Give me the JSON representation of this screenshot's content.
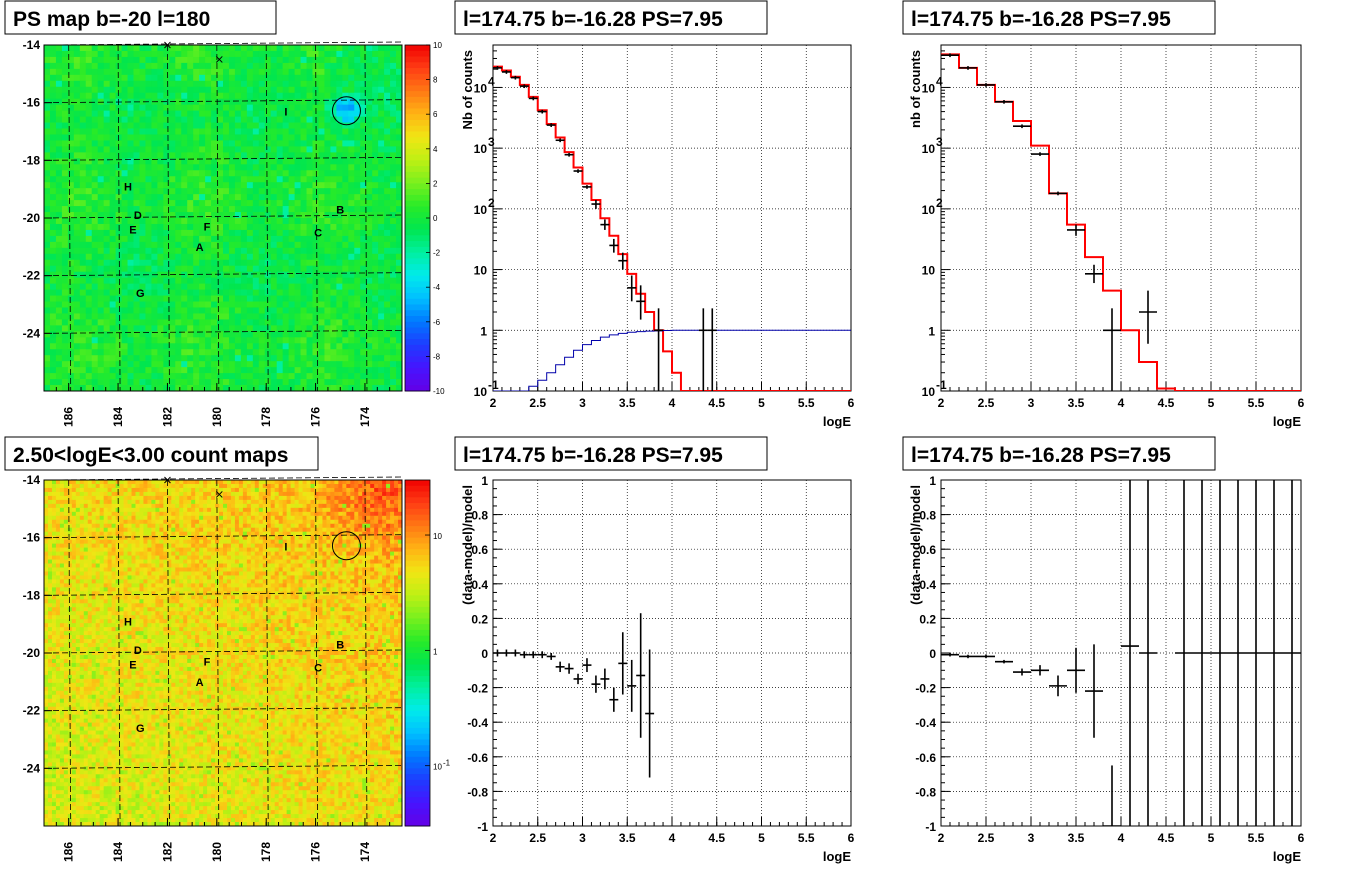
{
  "colors": {
    "model_red": "#ff0000",
    "data_black": "#000000",
    "efficiency_blue": "#0000aa",
    "grid": "#000000"
  },
  "chart_data": [
    {
      "id": "ps_map",
      "type": "heatmap",
      "title": "PS map b=-20 l=180",
      "xticks": [
        "186",
        "184",
        "182",
        "180",
        "178",
        "176",
        "174"
      ],
      "yticks": [
        "-14",
        "-16",
        "-18",
        "-20",
        "-22",
        "-24"
      ],
      "xlim": [
        187,
        172.5
      ],
      "ylim": [
        -26,
        -14
      ],
      "colorbar": {
        "ticks": [
          "10",
          "8",
          "6",
          "4",
          "2",
          "0",
          "-2",
          "-4",
          "-6",
          "-8",
          "-10"
        ],
        "range": [
          -10,
          10
        ]
      },
      "labels": [
        {
          "text": "H",
          "l": 183.6,
          "b": -18.9
        },
        {
          "text": "D",
          "l": 183.2,
          "b": -19.9
        },
        {
          "text": "E",
          "l": 183.4,
          "b": -20.4
        },
        {
          "text": "F",
          "l": 180.4,
          "b": -20.3
        },
        {
          "text": "A",
          "l": 180.7,
          "b": -21.0
        },
        {
          "text": "C",
          "l": 175.9,
          "b": -20.5
        },
        {
          "text": "B",
          "l": 175.0,
          "b": -19.7
        },
        {
          "text": "G",
          "l": 183.1,
          "b": -22.6
        },
        {
          "text": "I",
          "l": 177.2,
          "b": -16.3
        }
      ],
      "circle": {
        "l": 174.75,
        "b": -16.28
      },
      "crosses": [
        {
          "l": 182,
          "b": -14
        },
        {
          "l": 179.9,
          "b": -14.5
        }
      ]
    },
    {
      "id": "spectrum_fine",
      "type": "line",
      "title": "l=174.75 b=-16.28 PS=7.95",
      "xlabel": "logE",
      "ylabel": "Nb of counts",
      "yscale": "log",
      "xlim": [
        2,
        6
      ],
      "ylim": [
        0.1,
        50000
      ],
      "xticks": [
        "2",
        "2.5",
        "3",
        "3.5",
        "4",
        "4.5",
        "5",
        "5.5",
        "6"
      ],
      "yticks": [
        {
          "v": 0.1,
          "t": "10"
        },
        {
          "v": 1,
          "t": "1"
        },
        {
          "v": 10,
          "t": "10"
        },
        {
          "v": 100,
          "t": "10"
        },
        {
          "v": 1000,
          "t": "10"
        },
        {
          "v": 10000,
          "t": "10"
        }
      ],
      "edges": [
        2,
        2.1,
        2.2,
        2.3,
        2.4,
        2.5,
        2.6,
        2.7,
        2.8,
        2.9,
        3,
        3.1,
        3.2,
        3.3,
        3.4,
        3.5,
        3.6,
        3.7,
        3.8,
        3.9,
        4,
        4.1,
        4.2,
        4.3,
        4.4,
        4.5,
        4.6,
        4.7,
        4.8,
        4.9,
        5,
        5.1,
        5.2,
        5.3,
        5.4,
        5.5,
        5.6,
        5.7,
        5.8,
        5.9,
        6
      ],
      "series": [
        {
          "role": "model",
          "values": [
            22000,
            19000,
            15000,
            11000,
            7000,
            4200,
            2500,
            1500,
            860,
            480,
            260,
            140,
            70,
            36,
            18,
            8.5,
            4,
            2,
            1,
            0.45,
            0.2,
            0.1,
            0.1,
            0.1,
            0.1,
            0.1,
            0.1,
            0.1,
            0.1,
            0.1,
            0.1,
            0.1,
            0.1,
            0.1,
            0.1,
            0.1,
            0.1,
            0.1,
            0.1,
            0.1
          ]
        },
        {
          "role": "efficiency",
          "values": [
            0.1,
            0.1,
            0.1,
            0.1,
            0.12,
            0.15,
            0.2,
            0.27,
            0.36,
            0.47,
            0.58,
            0.68,
            0.77,
            0.84,
            0.89,
            0.93,
            0.95,
            0.97,
            0.98,
            0.99,
            1,
            1,
            1,
            1,
            1,
            1,
            1,
            1,
            1,
            1,
            1,
            1,
            1,
            1,
            1,
            1,
            1,
            1,
            1,
            1
          ]
        }
      ],
      "points": [
        {
          "x": 2.05,
          "y": 21000
        },
        {
          "x": 2.15,
          "y": 18000
        },
        {
          "x": 2.25,
          "y": 14500
        },
        {
          "x": 2.35,
          "y": 10500
        },
        {
          "x": 2.45,
          "y": 6600
        },
        {
          "x": 2.55,
          "y": 4000
        },
        {
          "x": 2.65,
          "y": 2400
        },
        {
          "x": 2.75,
          "y": 1350
        },
        {
          "x": 2.85,
          "y": 780
        },
        {
          "x": 2.95,
          "y": 420
        },
        {
          "x": 3.05,
          "y": 230
        },
        {
          "x": 3.15,
          "y": 120,
          "lo": 100,
          "hi": 140
        },
        {
          "x": 3.25,
          "y": 55,
          "lo": 45,
          "hi": 67
        },
        {
          "x": 3.35,
          "y": 25,
          "lo": 19,
          "hi": 32
        },
        {
          "x": 3.45,
          "y": 14,
          "lo": 10,
          "hi": 19
        },
        {
          "x": 3.55,
          "y": 5,
          "lo": 3,
          "hi": 8
        },
        {
          "x": 3.65,
          "y": 3,
          "lo": 1.5,
          "hi": 5.5
        },
        {
          "x": 3.85,
          "y": 1,
          "lo": 0.1,
          "hi": 2.3
        },
        {
          "x": 4.35,
          "y": 1,
          "lo": 0.1,
          "hi": 2.3
        },
        {
          "x": 4.45,
          "y": 1,
          "lo": 0.1,
          "hi": 2.3
        }
      ]
    },
    {
      "id": "spectrum_coarse",
      "type": "line",
      "title": "l=174.75 b=-16.28 PS=7.95",
      "xlabel": "logE",
      "ylabel": "nb of counts",
      "yscale": "log",
      "xlim": [
        2,
        6
      ],
      "ylim": [
        0.1,
        50000
      ],
      "xticks": [
        "2",
        "2.5",
        "3",
        "3.5",
        "4",
        "4.5",
        "5",
        "5.5",
        "6"
      ],
      "yticks": [
        {
          "v": 0.1,
          "t": "10"
        },
        {
          "v": 1,
          "t": "1"
        },
        {
          "v": 10,
          "t": "10"
        },
        {
          "v": 100,
          "t": "10"
        },
        {
          "v": 1000,
          "t": "10"
        },
        {
          "v": 10000,
          "t": "10"
        }
      ],
      "edges": [
        2,
        2.2,
        2.4,
        2.6,
        2.8,
        3,
        3.2,
        3.4,
        3.6,
        3.8,
        4,
        4.2,
        4.4,
        4.6,
        4.8,
        5,
        5.2,
        5.4,
        5.6,
        5.8,
        6
      ],
      "series": [
        {
          "role": "model",
          "values": [
            35000,
            21000,
            11000,
            5800,
            2800,
            1100,
            180,
            55,
            16,
            4.5,
            1,
            0.3,
            0.11,
            0.1,
            0.1,
            0.1,
            0.1,
            0.1,
            0.1,
            0.1
          ]
        }
      ],
      "points": [
        {
          "x": 2.1,
          "y": 34000
        },
        {
          "x": 2.3,
          "y": 21000
        },
        {
          "x": 2.5,
          "y": 11000
        },
        {
          "x": 2.7,
          "y": 5800
        },
        {
          "x": 2.9,
          "y": 2300
        },
        {
          "x": 3.1,
          "y": 800
        },
        {
          "x": 3.3,
          "y": 180
        },
        {
          "x": 3.5,
          "y": 45,
          "lo": 36,
          "hi": 55
        },
        {
          "x": 3.7,
          "y": 8.5,
          "lo": 6,
          "hi": 12
        },
        {
          "x": 3.9,
          "y": 1,
          "lo": 0.1,
          "hi": 2.3
        },
        {
          "x": 4.3,
          "y": 2,
          "lo": 0.6,
          "hi": 4.5
        }
      ]
    },
    {
      "id": "count_map",
      "type": "heatmap",
      "title": "2.50<logE<3.00 count maps",
      "xticks": [
        "186",
        "184",
        "182",
        "180",
        "178",
        "176",
        "174"
      ],
      "yticks": [
        "-14",
        "-16",
        "-18",
        "-20",
        "-22",
        "-24"
      ],
      "xlim": [
        187,
        172.5
      ],
      "ylim": [
        -26,
        -14
      ],
      "colorbar": {
        "ticks": [
          {
            "v": 10,
            "t": "10"
          },
          {
            "v": 1,
            "t": "1"
          },
          {
            "v": 0.1,
            "t": "10"
          }
        ],
        "range": [
          0.03,
          30
        ]
      },
      "labels": [
        {
          "text": "H",
          "l": 183.6,
          "b": -18.9
        },
        {
          "text": "D",
          "l": 183.2,
          "b": -19.9
        },
        {
          "text": "E",
          "l": 183.4,
          "b": -20.4
        },
        {
          "text": "F",
          "l": 180.4,
          "b": -20.3
        },
        {
          "text": "A",
          "l": 180.7,
          "b": -21.0
        },
        {
          "text": "C",
          "l": 175.9,
          "b": -20.5
        },
        {
          "text": "B",
          "l": 175.0,
          "b": -19.7
        },
        {
          "text": "G",
          "l": 183.1,
          "b": -22.6
        },
        {
          "text": "I",
          "l": 177.2,
          "b": -16.3
        }
      ],
      "circle": {
        "l": 174.75,
        "b": -16.28
      },
      "crosses": [
        {
          "l": 182,
          "b": -14
        },
        {
          "l": 179.9,
          "b": -14.5
        }
      ]
    },
    {
      "id": "residual_fine",
      "type": "scatter",
      "title": "l=174.75 b=-16.28 PS=7.95",
      "xlabel": "logE",
      "ylabel": "(data-model)/model",
      "xlim": [
        2,
        6
      ],
      "ylim": [
        -1,
        1
      ],
      "xticks": [
        "2",
        "2.5",
        "3",
        "3.5",
        "4",
        "4.5",
        "5",
        "5.5",
        "6"
      ],
      "yticks": [
        "1",
        "0.8",
        "0.6",
        "0.4",
        "0.2",
        "0",
        "-0.2",
        "-0.4",
        "-0.6",
        "-0.8",
        "-1"
      ],
      "points": [
        {
          "x": 2.05,
          "y": 0.0,
          "e": 0.02
        },
        {
          "x": 2.15,
          "y": 0.0,
          "e": 0.02
        },
        {
          "x": 2.25,
          "y": 0.0,
          "e": 0.02
        },
        {
          "x": 2.35,
          "y": -0.01,
          "e": 0.02
        },
        {
          "x": 2.45,
          "y": -0.01,
          "e": 0.02
        },
        {
          "x": 2.55,
          "y": -0.01,
          "e": 0.02
        },
        {
          "x": 2.65,
          "y": -0.02,
          "e": 0.02
        },
        {
          "x": 2.75,
          "y": -0.08,
          "e": 0.03
        },
        {
          "x": 2.85,
          "y": -0.09,
          "e": 0.03
        },
        {
          "x": 2.95,
          "y": -0.15,
          "e": 0.03
        },
        {
          "x": 3.05,
          "y": -0.07,
          "e": 0.04
        },
        {
          "x": 3.15,
          "y": -0.18,
          "e": 0.05
        },
        {
          "x": 3.25,
          "y": -0.15,
          "e": 0.06
        },
        {
          "x": 3.35,
          "y": -0.27,
          "e": 0.07
        },
        {
          "x": 3.45,
          "y": -0.06,
          "e": 0.18
        },
        {
          "x": 3.55,
          "y": -0.19,
          "e": 0.15
        },
        {
          "x": 3.65,
          "y": -0.13,
          "e": 0.36
        },
        {
          "x": 3.75,
          "y": -0.35,
          "e": 0.37
        }
      ]
    },
    {
      "id": "residual_coarse",
      "type": "scatter",
      "title": "l=174.75 b=-16.28 PS=7.95",
      "xlabel": "logE",
      "ylabel": "(data-model)/model",
      "xlim": [
        2,
        6
      ],
      "ylim": [
        -1,
        1
      ],
      "xticks": [
        "2",
        "2.5",
        "3",
        "3.5",
        "4",
        "4.5",
        "5",
        "5.5",
        "6"
      ],
      "yticks": [
        "1",
        "0.8",
        "0.6",
        "0.4",
        "0.2",
        "0",
        "-0.2",
        "-0.4",
        "-0.6",
        "-0.8",
        "-1"
      ],
      "points": [
        {
          "x": 2.1,
          "y": -0.01,
          "e": 0.01
        },
        {
          "x": 2.3,
          "y": -0.02,
          "e": 0.01
        },
        {
          "x": 2.5,
          "y": -0.02,
          "e": 0.01
        },
        {
          "x": 2.7,
          "y": -0.05,
          "e": 0.01
        },
        {
          "x": 2.9,
          "y": -0.11,
          "e": 0.02
        },
        {
          "x": 3.1,
          "y": -0.1,
          "e": 0.03
        },
        {
          "x": 3.3,
          "y": -0.19,
          "e": 0.06
        },
        {
          "x": 3.5,
          "y": -0.1,
          "e": 0.13
        },
        {
          "x": 3.7,
          "y": -0.22,
          "e": 0.27
        },
        {
          "x": 3.9,
          "y": -1,
          "e": 0.35
        },
        {
          "x": 4.1,
          "y": 0.04,
          "e": 1.5
        },
        {
          "x": 4.3,
          "y": 0,
          "e": 1.5
        },
        {
          "x": 4.7,
          "y": 0,
          "e": 1.5
        },
        {
          "x": 4.9,
          "y": 0,
          "e": 1.5
        },
        {
          "x": 5.1,
          "y": 0,
          "e": 1.5
        },
        {
          "x": 5.3,
          "y": 0,
          "e": 1.5
        },
        {
          "x": 5.5,
          "y": 0,
          "e": 1.5
        },
        {
          "x": 5.7,
          "y": 0,
          "e": 1.5
        },
        {
          "x": 5.9,
          "y": 0,
          "e": 1.5
        }
      ]
    }
  ]
}
